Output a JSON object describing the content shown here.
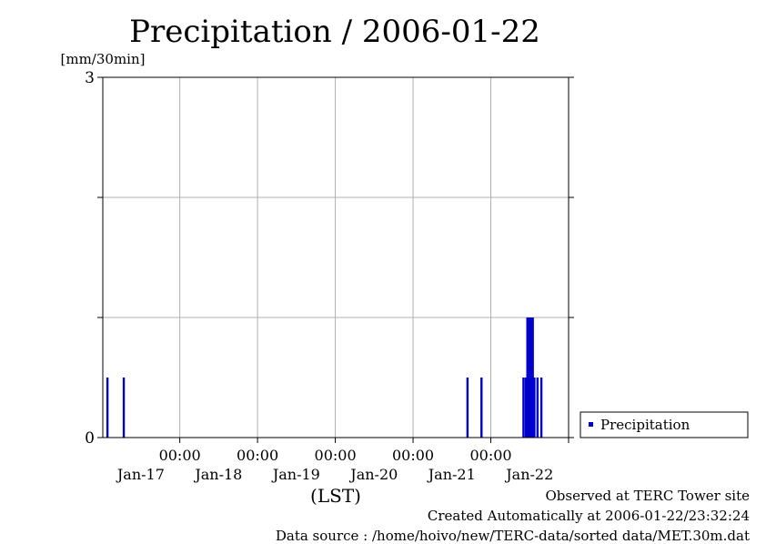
{
  "chart_data": {
    "type": "bar",
    "title": "Precipitation / 2006-01-22",
    "ylabel": "[mm/30min]",
    "xlabel": "(LST)",
    "ylim": [
      0,
      3
    ],
    "y_ticks": [
      0,
      1,
      2,
      3
    ],
    "y_tick_labels": [
      "0",
      "3"
    ],
    "xlim": [
      -0.99,
      5.0
    ],
    "x_tick_positions": [
      0,
      1,
      2,
      3,
      4,
      5
    ],
    "x_tick_time_labels": [
      "00:00",
      "00:00",
      "00:00",
      "00:00",
      "00:00"
    ],
    "x_tick_date_labels": [
      "Jan-17",
      "Jan-18",
      "Jan-19",
      "Jan-20",
      "Jan-21",
      "Jan-22"
    ],
    "x_day_positions": [
      -0.5,
      0.5,
      1.5,
      2.5,
      3.5,
      4.5
    ],
    "grid": true,
    "legend": {
      "position": "right",
      "entries": [
        "Precipitation"
      ]
    },
    "series": [
      {
        "name": "Precipitation",
        "color": "#0000cc",
        "x": [
          -0.93,
          -0.72,
          3.7,
          3.88,
          4.42,
          4.45,
          4.47,
          4.48,
          4.49,
          4.5,
          4.51,
          4.52,
          4.53,
          4.54,
          4.56,
          4.6,
          4.65
        ],
        "values": [
          0.5,
          0.5,
          0.5,
          0.5,
          0.5,
          0.5,
          1.0,
          1.0,
          1.0,
          1.0,
          1.0,
          1.0,
          1.0,
          1.0,
          0.5,
          0.5,
          0.5
        ]
      }
    ]
  },
  "footer": {
    "observed": "Observed at TERC Tower site",
    "created": "Created Automatically at 2006-01-22/23:32:24",
    "source": "Data source : /home/hoivo/new/TERC-data/sorted  data/MET.30m.dat"
  }
}
